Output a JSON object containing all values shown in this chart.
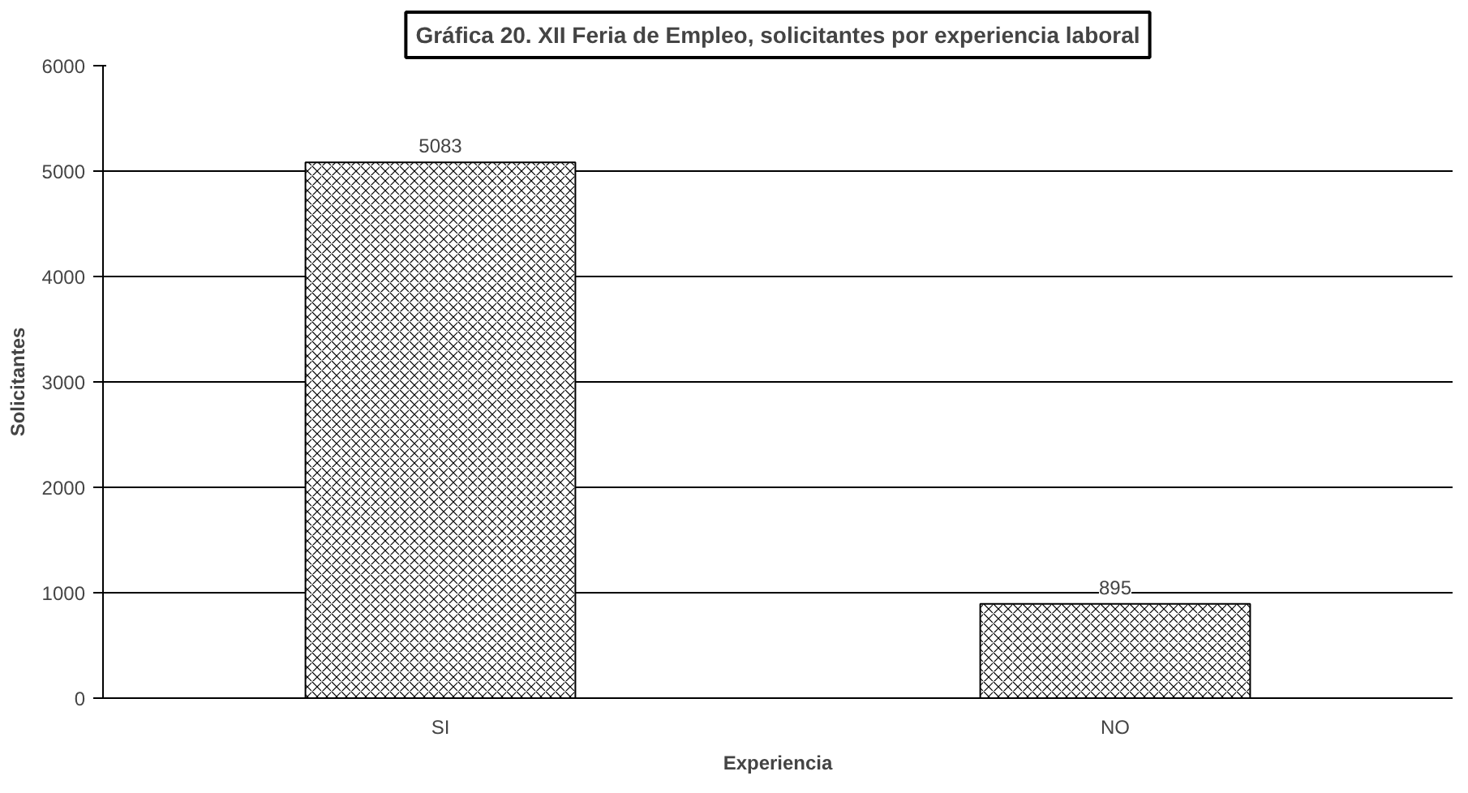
{
  "chart_data": {
    "type": "bar",
    "title": "Gráfica 20. XII Feria de Empleo, solicitantes por experiencia laboral",
    "xlabel": "Experiencia",
    "ylabel": "Solicitantes",
    "categories": [
      "SI",
      "NO"
    ],
    "values": [
      5083,
      895
    ],
    "color": "#ffffff",
    "ylim": [
      0,
      6000
    ],
    "yticks": [
      0,
      1000,
      2000,
      3000,
      4000,
      5000,
      6000
    ],
    "grid": "y",
    "data_labels": true
  }
}
